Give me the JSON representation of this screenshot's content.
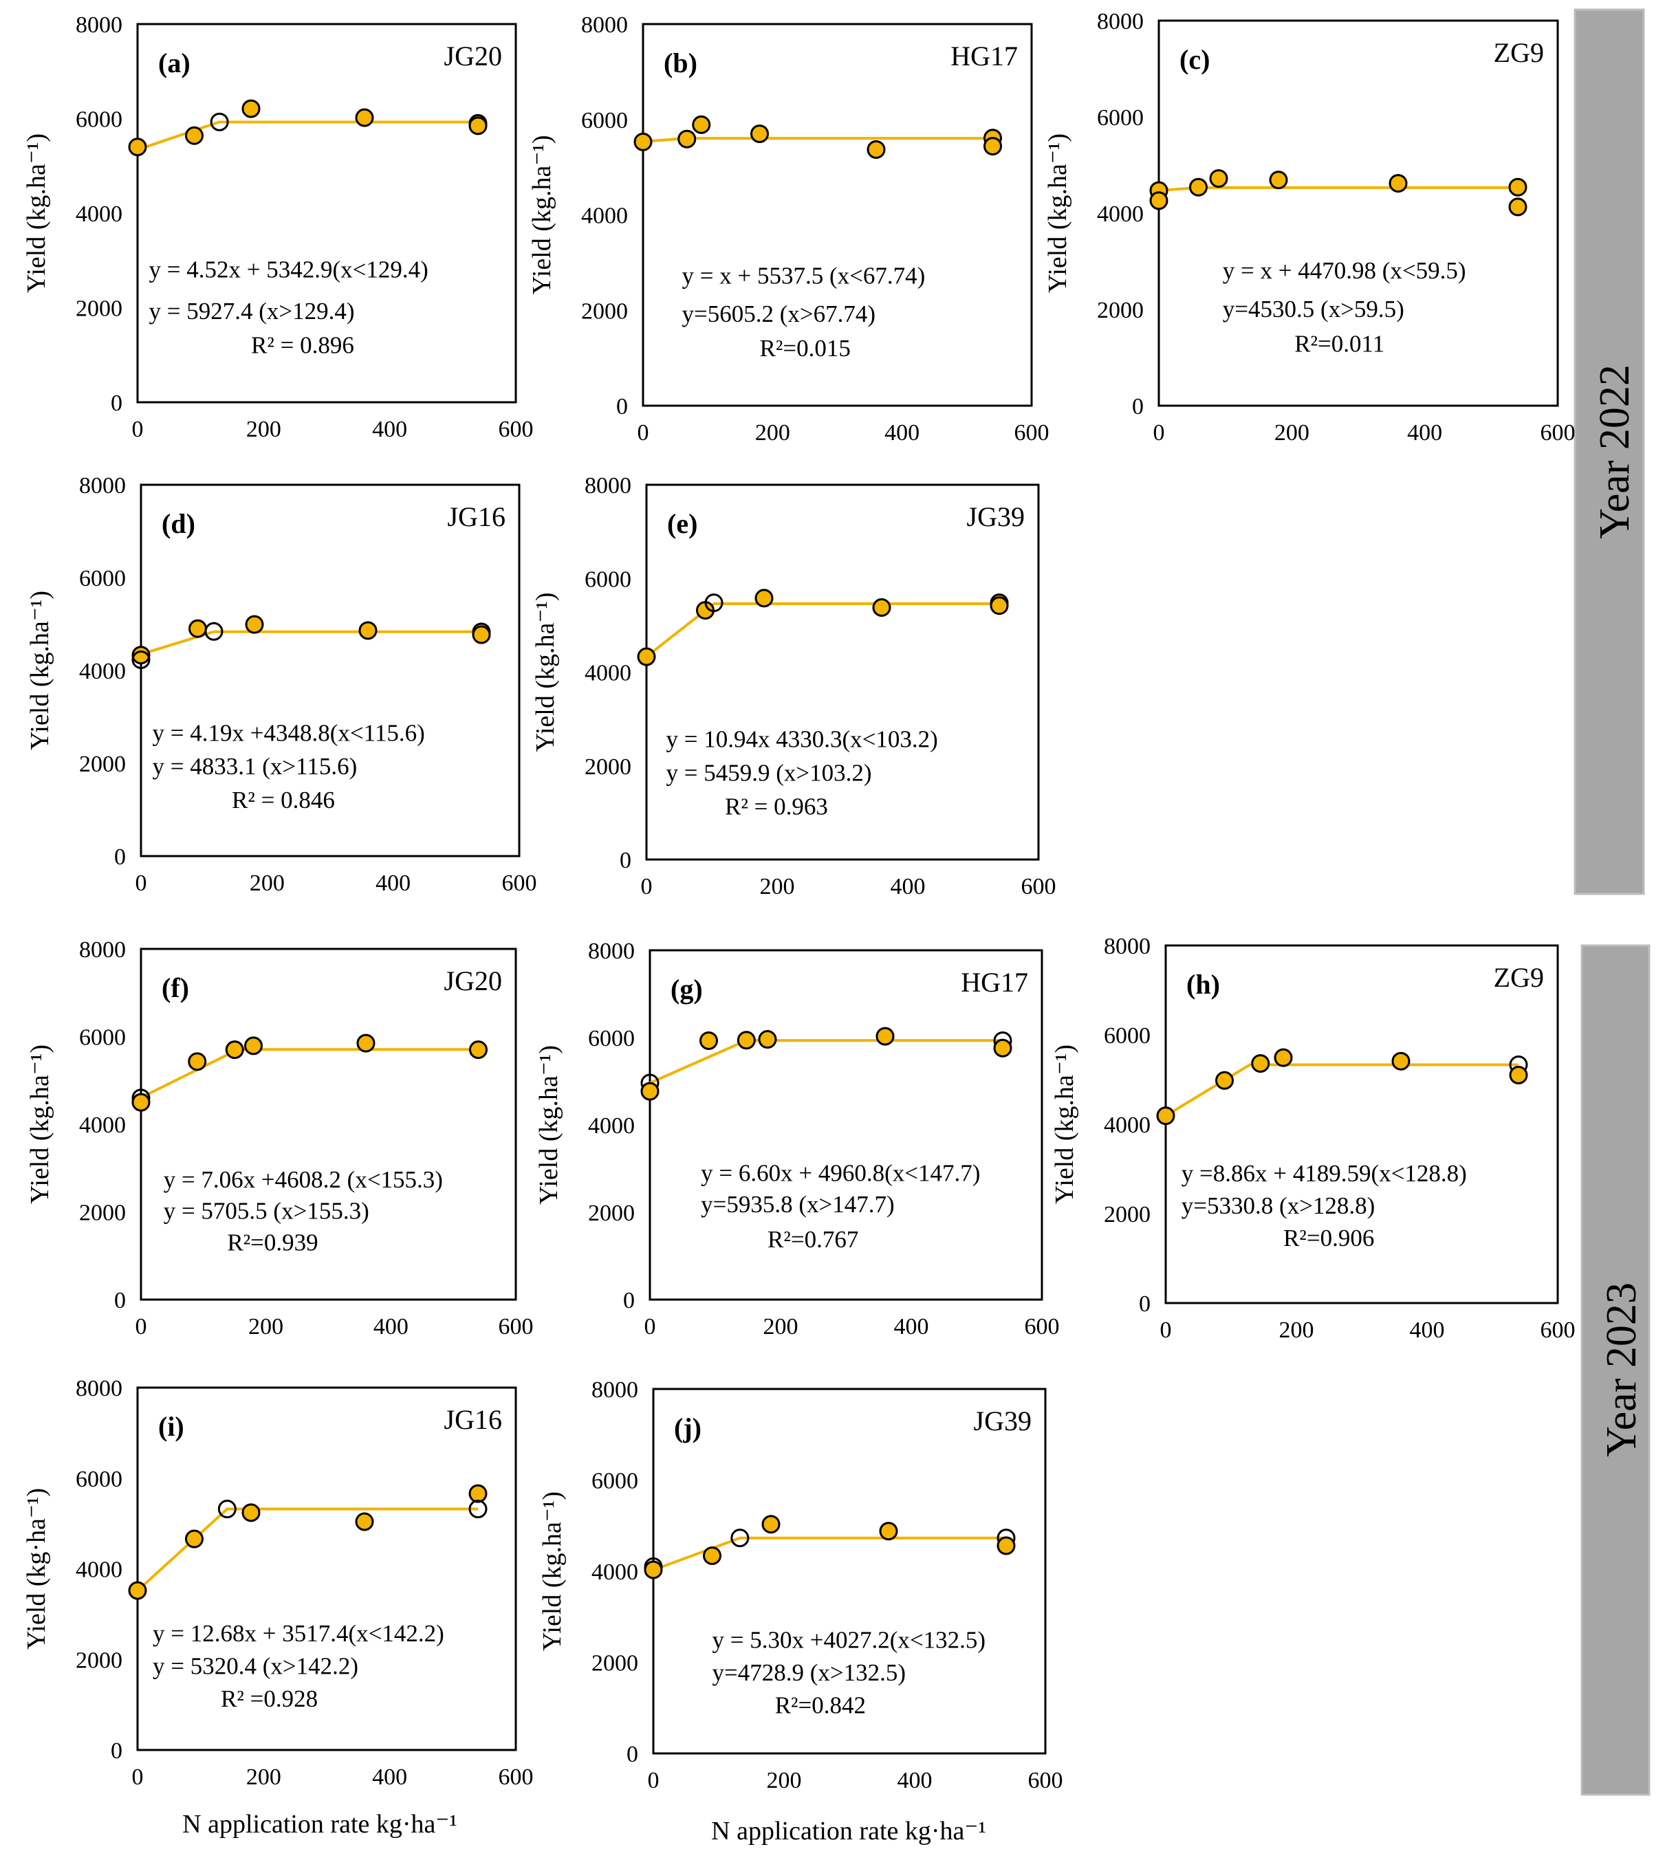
{
  "figure": {
    "year_groups": [
      {
        "label": "Year 2022",
        "panels": [
          0,
          1,
          2,
          3,
          4
        ]
      },
      {
        "label": "Year 2023",
        "panels": [
          5,
          6,
          7,
          8,
          9
        ]
      }
    ],
    "ylabel": "Yield (kg.ha⁻¹)",
    "ylabel_alt": "Yield (kg·ha⁻¹)",
    "xlabel": "N application rate   kg·ha⁻¹",
    "colors": {
      "marker": "#F4B400",
      "fit_line": "#F2B300",
      "year_bar": "#a6a6a6"
    }
  },
  "chart_data": [
    {
      "type": "scatter",
      "title": "(a)",
      "cultivar": "JG20",
      "year": "Year 2022",
      "xlim": [
        0,
        600
      ],
      "ylim": [
        0,
        8000
      ],
      "xticks": [
        0,
        200,
        400,
        600
      ],
      "yticks": [
        0,
        2000,
        4000,
        6000,
        8000
      ],
      "x": [
        0,
        90,
        130,
        180,
        360,
        540,
        540
      ],
      "y": [
        5400,
        5640,
        5930,
        6210,
        6020,
        5900,
        5850
      ],
      "open": [
        false,
        false,
        true,
        false,
        false,
        false,
        false
      ],
      "fit": {
        "slope": 4.52,
        "intercept": 5342.9,
        "breakpoint": 129.4,
        "plateau": 5927.4
      },
      "equations": [
        "y = 4.52x + 5342.9(x<129.4)",
        "y = 5927.4               (x>129.4)",
        "R² = 0.896"
      ]
    },
    {
      "type": "scatter",
      "title": "(b)",
      "cultivar": "HG17",
      "year": "Year 2022",
      "xlim": [
        0,
        600
      ],
      "ylim": [
        0,
        8000
      ],
      "xticks": [
        0,
        200,
        400,
        600
      ],
      "yticks": [
        0,
        2000,
        4000,
        6000,
        8000
      ],
      "x": [
        0,
        67.7,
        90,
        180,
        360,
        540,
        540
      ],
      "y": [
        5530,
        5590,
        5890,
        5700,
        5370,
        5610,
        5440
      ],
      "open": [
        false,
        false,
        false,
        false,
        false,
        false,
        false
      ],
      "fit": {
        "slope": 1,
        "intercept": 5537.5,
        "breakpoint": 67.74,
        "plateau": 5605.2
      },
      "equations": [
        "y = x + 5537.5  (x<67.74)",
        "y=5605.2           (x>67.74)",
        "R²=0.015"
      ]
    },
    {
      "type": "scatter",
      "title": "(c)",
      "cultivar": "ZG9",
      "year": "Year 2022",
      "xlim": [
        0,
        600
      ],
      "ylim": [
        0,
        8000
      ],
      "xticks": [
        0,
        200,
        400,
        600
      ],
      "yticks": [
        0,
        2000,
        4000,
        6000,
        8000
      ],
      "x": [
        0,
        0,
        59.5,
        90,
        180,
        360,
        540,
        540
      ],
      "y": [
        4470,
        4260,
        4540,
        4720,
        4690,
        4620,
        4540,
        4130
      ],
      "open": [
        false,
        false,
        false,
        false,
        false,
        false,
        false,
        false
      ],
      "fit": {
        "slope": 1,
        "intercept": 4470.98,
        "breakpoint": 59.5,
        "plateau": 4530.5
      },
      "equations": [
        "y = x + 4470.98  (x<59.5)",
        "y=4530.5            (x>59.5)",
        "R²=0.011"
      ]
    },
    {
      "type": "scatter",
      "title": "(d)",
      "cultivar": "JG16",
      "year": "Year 2022",
      "xlim": [
        0,
        600
      ],
      "ylim": [
        0,
        8000
      ],
      "xticks": [
        0,
        200,
        400,
        600
      ],
      "yticks": [
        0,
        2000,
        4000,
        6000,
        8000
      ],
      "x": [
        0,
        0,
        90,
        115.6,
        180,
        360,
        540,
        540
      ],
      "y": [
        4330,
        4230,
        4900,
        4840,
        4990,
        4860,
        4830,
        4770
      ],
      "open": [
        false,
        true,
        false,
        true,
        false,
        false,
        false,
        false
      ],
      "fit": {
        "slope": 4.19,
        "intercept": 4348.8,
        "breakpoint": 115.6,
        "plateau": 4833.1
      },
      "equations": [
        "y = 4.19x +4348.8(x<115.6)",
        "y = 4833.1             (x>115.6)",
        "R² = 0.846"
      ]
    },
    {
      "type": "scatter",
      "title": "(e)",
      "cultivar": "JG39",
      "year": "Year 2022",
      "xlim": [
        0,
        600
      ],
      "ylim": [
        0,
        8000
      ],
      "xticks": [
        0,
        200,
        400,
        600
      ],
      "yticks": [
        0,
        2000,
        4000,
        6000,
        8000
      ],
      "x": [
        0,
        90,
        103.2,
        180,
        360,
        540,
        540
      ],
      "y": [
        4330,
        5320,
        5480,
        5580,
        5380,
        5480,
        5420
      ],
      "open": [
        false,
        false,
        true,
        false,
        false,
        false,
        false
      ],
      "fit": {
        "slope": 10.94,
        "intercept": 4330.3,
        "breakpoint": 103.2,
        "plateau": 5459.9
      },
      "equations": [
        "y = 10.94x  4330.3(x<103.2)",
        "y = 5459.9            (x>103.2)",
        "R² = 0.963"
      ]
    },
    {
      "type": "scatter",
      "title": "(f)",
      "cultivar": "JG20",
      "year": "Year 2023",
      "xlim": [
        0,
        600
      ],
      "ylim": [
        0,
        8000
      ],
      "xticks": [
        0,
        200,
        400,
        600
      ],
      "yticks": [
        0,
        2000,
        4000,
        6000,
        8000
      ],
      "x": [
        0,
        0,
        90,
        150,
        180,
        360,
        540
      ],
      "y": [
        4600,
        4500,
        5430,
        5700,
        5790,
        5850,
        5700
      ],
      "open": [
        true,
        false,
        false,
        false,
        false,
        false,
        false
      ],
      "fit": {
        "slope": 7.06,
        "intercept": 4608.2,
        "breakpoint": 155.3,
        "plateau": 5705.5
      },
      "equations": [
        "y = 7.06x +4608.2  (x<155.3)",
        "y = 5705.5              (x>155.3)",
        "R²=0.939"
      ]
    },
    {
      "type": "scatter",
      "title": "(g)",
      "cultivar": "HG17",
      "year": "Year 2023",
      "xlim": [
        0,
        600
      ],
      "ylim": [
        0,
        8000
      ],
      "xticks": [
        0,
        200,
        400,
        600
      ],
      "yticks": [
        0,
        2000,
        4000,
        6000,
        8000
      ],
      "x": [
        0,
        0,
        90,
        147.7,
        180,
        360,
        540,
        540
      ],
      "y": [
        4960,
        4770,
        5930,
        5940,
        5960,
        6030,
        5930,
        5760
      ],
      "open": [
        true,
        false,
        false,
        false,
        false,
        false,
        true,
        false
      ],
      "fit": {
        "slope": 6.6,
        "intercept": 4960.8,
        "breakpoint": 147.7,
        "plateau": 5935.8
      },
      "equations": [
        "y = 6.60x + 4960.8(x<147.7)",
        "y=5935.8                (x>147.7)",
        "R²=0.767"
      ]
    },
    {
      "type": "scatter",
      "title": "(h)",
      "cultivar": "ZG9",
      "year": "Year 2023",
      "xlim": [
        0,
        600
      ],
      "ylim": [
        0,
        8000
      ],
      "xticks": [
        0,
        200,
        400,
        600
      ],
      "yticks": [
        0,
        2000,
        4000,
        6000,
        8000
      ],
      "x": [
        0,
        90,
        145,
        180,
        360,
        540,
        540
      ],
      "y": [
        4190,
        4980,
        5360,
        5490,
        5410,
        5330,
        5100
      ],
      "open": [
        false,
        false,
        false,
        false,
        false,
        true,
        false
      ],
      "fit": {
        "slope": 8.86,
        "intercept": 4189.59,
        "breakpoint": 128.8,
        "plateau": 5330.8
      },
      "equations": [
        "y =8.86x + 4189.59(x<128.8)",
        "y=5330.8                   (x>128.8)",
        "R²=0.906"
      ]
    },
    {
      "type": "scatter",
      "title": "(i)",
      "cultivar": "JG16",
      "year": "Year 2023",
      "xlim": [
        0,
        600
      ],
      "ylim": [
        0,
        8000
      ],
      "xticks": [
        0,
        200,
        400,
        600
      ],
      "yticks": [
        0,
        2000,
        4000,
        6000,
        8000
      ],
      "x": [
        0,
        90,
        142.2,
        180,
        360,
        540,
        540
      ],
      "y": [
        3520,
        4660,
        5320,
        5240,
        5040,
        5660,
        5320
      ],
      "open": [
        false,
        false,
        true,
        false,
        false,
        false,
        true
      ],
      "fit": {
        "slope": 12.68,
        "intercept": 3517.4,
        "breakpoint": 142.2,
        "plateau": 5320.4
      },
      "equations": [
        "y = 12.68x + 3517.4(x<142.2)",
        "y = 5320.4                (x>142.2)",
        "R² =0.928"
      ]
    },
    {
      "type": "scatter",
      "title": "(j)",
      "cultivar": "JG39",
      "year": "Year 2023",
      "xlim": [
        0,
        600
      ],
      "ylim": [
        0,
        8000
      ],
      "xticks": [
        0,
        200,
        400,
        600
      ],
      "yticks": [
        0,
        2000,
        4000,
        6000,
        8000
      ],
      "x": [
        0,
        0,
        90,
        132.5,
        180,
        360,
        540,
        540
      ],
      "y": [
        4100,
        4030,
        4340,
        4730,
        5030,
        4880,
        4730,
        4560
      ],
      "open": [
        true,
        false,
        false,
        true,
        false,
        false,
        true,
        false
      ],
      "fit": {
        "slope": 5.3,
        "intercept": 4027.2,
        "breakpoint": 132.5,
        "plateau": 4728.9
      },
      "equations": [
        "y = 5.30x +4027.2(x<132.5)",
        "y=4728.9               (x>132.5)",
        "R²=0.842"
      ]
    }
  ]
}
